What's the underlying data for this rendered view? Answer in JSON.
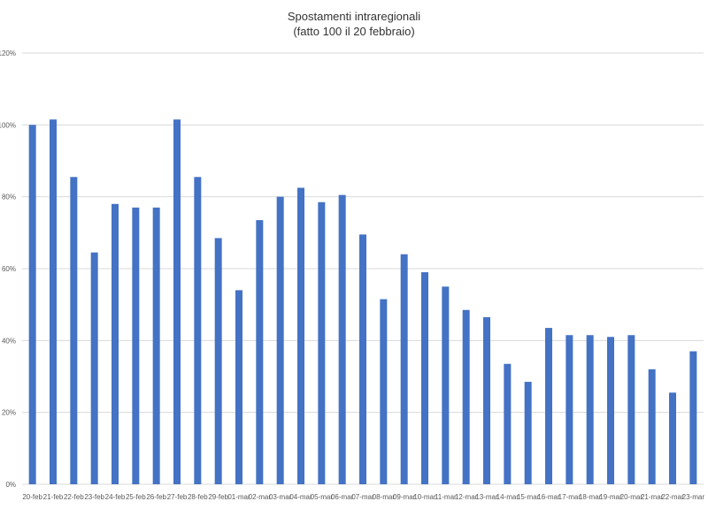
{
  "chart_data": {
    "type": "bar",
    "title": "Spostamenti intraregionali",
    "subtitle": "(fatto 100 il 20 febbraio)",
    "xlabel": "",
    "ylabel": "",
    "ylim": [
      0,
      120
    ],
    "y_ticks": [
      "0%",
      "20%",
      "40%",
      "60%",
      "80%",
      "100%",
      "120%"
    ],
    "grid": true,
    "bar_color": "#4472c4",
    "categories": [
      "20-feb",
      "21-feb",
      "22-feb",
      "23-feb",
      "24-feb",
      "25-feb",
      "26-feb",
      "27-feb",
      "28-feb",
      "29-feb",
      "01-mar",
      "02-mar",
      "03-mar",
      "04-mar",
      "05-mar",
      "06-mar",
      "07-mar",
      "08-mar",
      "09-mar",
      "10-mar",
      "11-mar",
      "12-mar",
      "13-mar",
      "14-mar",
      "15-mar",
      "16-mar",
      "17-mar",
      "18-mar",
      "19-mar",
      "20-mar",
      "21-mar",
      "22-mar",
      "23-mar"
    ],
    "values": [
      100,
      101.5,
      85.5,
      64.5,
      78,
      77,
      77,
      101.5,
      85.5,
      68.5,
      54,
      73.5,
      80,
      82.5,
      78.5,
      80.5,
      69.5,
      51.5,
      64,
      59,
      55,
      48.5,
      46.5,
      33.5,
      28.5,
      43.5,
      41.5,
      41.5,
      41,
      41.5,
      32,
      25.5,
      37
    ]
  }
}
